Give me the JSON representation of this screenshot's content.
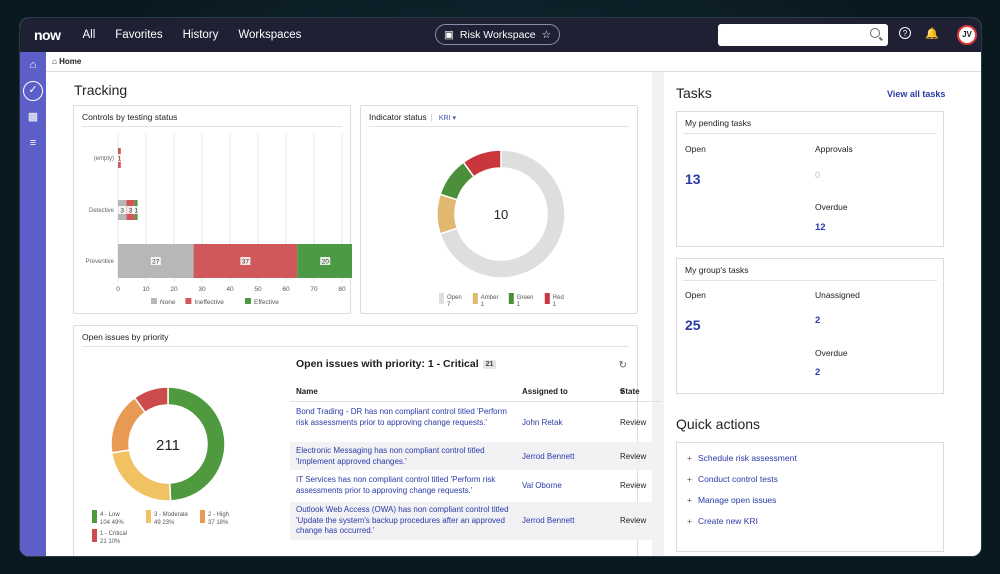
{
  "topbar": {
    "logo": "now",
    "nav": [
      "All",
      "Favorites",
      "History",
      "Workspaces"
    ],
    "workspace_pill": "Risk Workspace",
    "avatar_initials": "JV"
  },
  "breadcrumb": "Home",
  "tracking": {
    "title": "Tracking",
    "controls_card": {
      "title": "Controls by testing status",
      "chart_data": {
        "type": "bar",
        "orientation": "horizontal",
        "stacked": true,
        "categories": [
          "(empty)",
          "Detective",
          "Preventive"
        ],
        "series": [
          {
            "name": "None",
            "values": [
              0,
              3,
              27
            ],
            "color": "#b7b7b7"
          },
          {
            "name": "Ineffective",
            "values": [
              1,
              3,
              37
            ],
            "color": "#d1585a"
          },
          {
            "name": "Effective",
            "values": [
              0,
              1,
              20
            ],
            "color": "#4c9a45"
          }
        ],
        "xlim": [
          0,
          80
        ],
        "xticks": [
          "0",
          "10",
          "20",
          "30",
          "40",
          "50",
          "60",
          "70",
          "80"
        ],
        "legend_position": "bottom",
        "grid": true
      }
    },
    "indicator_card": {
      "title": "Indicator status",
      "filter": "KRI",
      "total": "10",
      "chart_data": {
        "type": "pie",
        "donut": true,
        "categories": [
          "Open",
          "Amber",
          "Green",
          "Red"
        ],
        "values": [
          7,
          1,
          1,
          1
        ],
        "colors": [
          "#dedede",
          "#e0b870",
          "#4c8f3a",
          "#c9363c"
        ],
        "legend_position": "bottom"
      },
      "legend": [
        {
          "label": "Open",
          "count": "7"
        },
        {
          "label": "Amber",
          "count": "1"
        },
        {
          "label": "Green",
          "count": "1"
        },
        {
          "label": "Red",
          "count": "1"
        }
      ]
    },
    "issues_card": {
      "title": "Open issues by priority",
      "total": "211",
      "chart_data": {
        "type": "pie",
        "donut": true,
        "categories": [
          "4 - Low",
          "3 - Moderate",
          "2 - High",
          "1 - Critical"
        ],
        "values": [
          104,
          49,
          37,
          21
        ],
        "colors": [
          "#4f9a3f",
          "#f0c262",
          "#e89a55",
          "#cc4c4c"
        ],
        "legend_position": "bottom"
      },
      "legend": [
        {
          "label": "4 - Low",
          "count": "104",
          "pct": "49%"
        },
        {
          "label": "3 - Moderate",
          "count": "49",
          "pct": "23%"
        },
        {
          "label": "2 - High",
          "count": "37",
          "pct": "18%"
        },
        {
          "label": "1 - Critical",
          "count": "21",
          "pct": "10%"
        }
      ],
      "table_title": "Open issues with priority: 1 - Critical",
      "table_badge": "21",
      "columns": [
        "Name",
        "Assigned to",
        "State"
      ],
      "rows": [
        {
          "name": "Bond Trading - DR has non compliant control titled 'Perform risk assessments prior to approving change requests.'",
          "assigned": "John Retak",
          "state": "Review"
        },
        {
          "name": "Electronic Messaging has non compliant control titled 'Implement approved changes.'",
          "assigned": "Jerrod Bennett",
          "state": "Review"
        },
        {
          "name": "IT Services has non compliant control titled 'Perform risk assessments prior to approving change requests.'",
          "assigned": "Val Oborne",
          "state": "Review"
        },
        {
          "name": "Outlook Web Access (OWA) has non compliant control titled 'Update the system's backup procedures after an approved change has occurred.'",
          "assigned": "Jerrod Bennett",
          "state": "Review"
        }
      ]
    }
  },
  "tasks": {
    "title": "Tasks",
    "view_all": "View all tasks",
    "pending": {
      "title": "My pending tasks",
      "open_label": "Open",
      "open_value": "13",
      "approvals_label": "Approvals",
      "approvals_value": "0",
      "overdue_label": "Overdue",
      "overdue_value": "12"
    },
    "group": {
      "title": "My group's tasks",
      "open_label": "Open",
      "open_value": "25",
      "unassigned_label": "Unassigned",
      "unassigned_value": "2",
      "overdue_label": "Overdue",
      "overdue_value": "2"
    }
  },
  "quick_actions": {
    "title": "Quick actions",
    "items": [
      "Schedule risk assessment",
      "Conduct control tests",
      "Manage open issues",
      "Create new KRI"
    ]
  }
}
